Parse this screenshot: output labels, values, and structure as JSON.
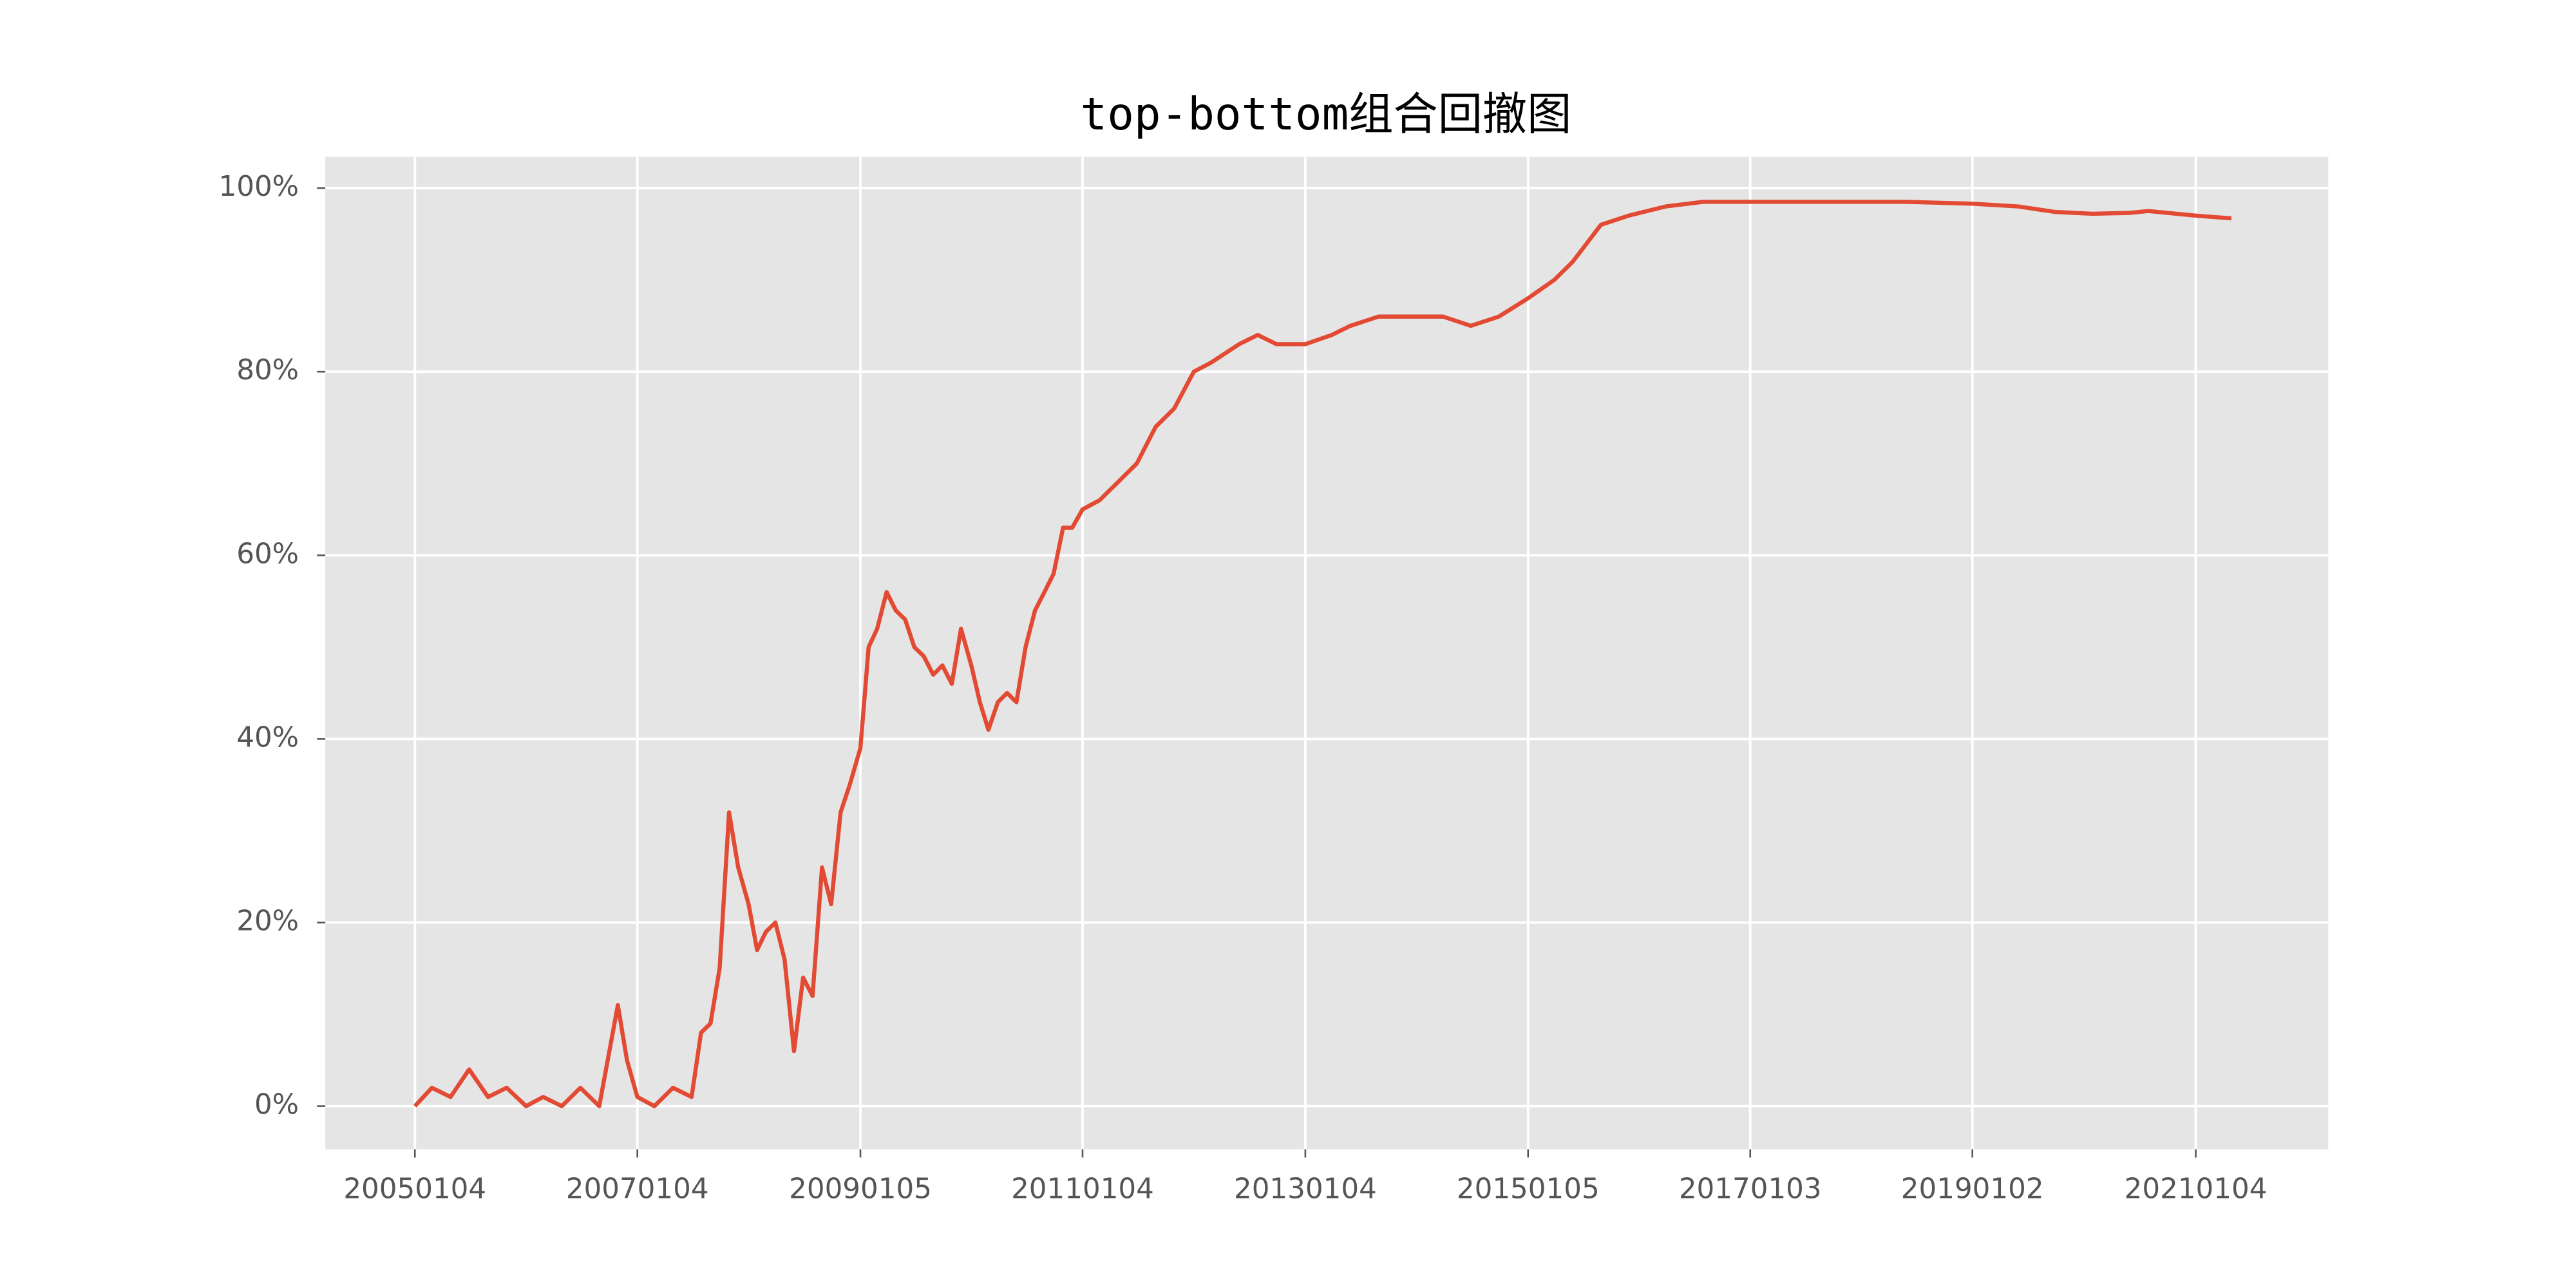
{
  "chart_data": {
    "type": "line",
    "title": "top-bottom组合回撤图",
    "x": [
      "20050104",
      "20050301",
      "20050501",
      "20050701",
      "20050901",
      "20051101",
      "20060104",
      "20060301",
      "20060501",
      "20060701",
      "20060901",
      "20061101",
      "20061201",
      "20070104",
      "20070301",
      "20070501",
      "20070701",
      "20070801",
      "20070901",
      "20071001",
      "20071101",
      "20071201",
      "20080104",
      "20080201",
      "20080301",
      "20080401",
      "20080501",
      "20080601",
      "20080701",
      "20080801",
      "20080901",
      "20081001",
      "20081101",
      "20081201",
      "20090105",
      "20090201",
      "20090301",
      "20090401",
      "20090501",
      "20090601",
      "20090701",
      "20090801",
      "20090901",
      "20091001",
      "20091101",
      "20091201",
      "20100104",
      "20100201",
      "20100301",
      "20100401",
      "20100501",
      "20100601",
      "20100701",
      "20100801",
      "20100901",
      "20101001",
      "20101101",
      "20101201",
      "20110104",
      "20110301",
      "20110501",
      "20110701",
      "20110901",
      "20111101",
      "20120104",
      "20120301",
      "20120601",
      "20120801",
      "20121001",
      "20130104",
      "20130401",
      "20130601",
      "20130901",
      "20131201",
      "20140401",
      "20140701",
      "20141001",
      "20150105",
      "20150401",
      "20150601",
      "20150901",
      "20151201",
      "20160401",
      "20160801",
      "20170103",
      "20171001",
      "20180601",
      "20190102",
      "20190601",
      "20191001",
      "20200201",
      "20200601",
      "20200801",
      "20210104",
      "20210501"
    ],
    "series": [
      {
        "name": "top-bottom",
        "color": "#e24a33",
        "values": [
          0,
          2,
          1,
          4,
          1,
          2,
          0,
          1,
          0,
          2,
          0,
          11,
          5,
          1,
          0,
          2,
          1,
          8,
          9,
          15,
          32,
          26,
          22,
          17,
          19,
          20,
          16,
          6,
          14,
          12,
          26,
          22,
          32,
          35,
          39,
          50,
          52,
          56,
          54,
          53,
          50,
          49,
          47,
          48,
          46,
          52,
          48,
          44,
          41,
          44,
          45,
          44,
          50,
          54,
          56,
          58,
          63,
          63,
          65,
          66,
          68,
          70,
          74,
          76,
          80,
          81,
          83,
          84,
          83,
          83,
          84,
          85,
          86,
          86,
          86,
          85,
          86,
          88,
          90,
          92,
          96,
          97,
          98,
          98.5,
          98.5,
          98.5,
          98.5,
          98.3,
          98,
          97.4,
          97.2,
          97.3,
          97.5,
          97,
          96.7
        ]
      }
    ],
    "xlim": [
      "20040316",
      "20220315"
    ],
    "xticks": [
      "20050104",
      "20070104",
      "20090105",
      "20110104",
      "20130104",
      "20150105",
      "20170103",
      "20190102",
      "20210104"
    ],
    "ylim": [
      -4.7,
      103.4
    ],
    "yticks": [
      {
        "value": 0,
        "label": "0%"
      },
      {
        "value": 20,
        "label": "20%"
      },
      {
        "value": 40,
        "label": "40%"
      },
      {
        "value": 60,
        "label": "60%"
      },
      {
        "value": 80,
        "label": "80%"
      },
      {
        "value": 100,
        "label": "100%"
      }
    ],
    "grid": true
  }
}
